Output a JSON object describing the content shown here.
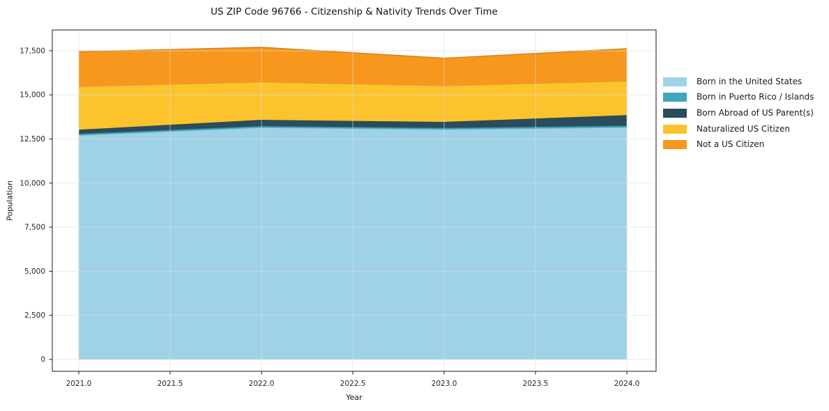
{
  "chart_data": {
    "type": "area",
    "stacked": true,
    "title": "US ZIP Code 96766 - Citizenship & Nativity Trends Over Time",
    "xlabel": "Year",
    "ylabel": "Population",
    "x": [
      2021,
      2022,
      2023,
      2024
    ],
    "series": [
      {
        "name": "Born in the United States",
        "color": "#9ed2e6",
        "values": [
          12710,
          13150,
          13045,
          13160
        ]
      },
      {
        "name": "Born in Puerto Rico / Islands",
        "color": "#3fa5c0",
        "values": [
          80,
          80,
          80,
          90
        ]
      },
      {
        "name": "Born Abroad of US Parent(s)",
        "color": "#2b4c5c",
        "values": [
          235,
          355,
          340,
          600
        ]
      },
      {
        "name": "Naturalized US Citizen",
        "color": "#fcc32d",
        "values": [
          2450,
          2145,
          2055,
          1935
        ]
      },
      {
        "name": "Not a US Citizen",
        "color": "#f8971d",
        "values": [
          1975,
          1970,
          1560,
          1835
        ]
      }
    ],
    "x_ticks": [
      {
        "v": 2021.0,
        "label": "2021.0"
      },
      {
        "v": 2021.5,
        "label": "2021.5"
      },
      {
        "v": 2022.0,
        "label": "2022.0"
      },
      {
        "v": 2022.5,
        "label": "2022.5"
      },
      {
        "v": 2023.0,
        "label": "2023.0"
      },
      {
        "v": 2023.5,
        "label": "2023.5"
      },
      {
        "v": 2024.0,
        "label": "2024.0"
      }
    ],
    "y_ticks": [
      {
        "v": 0,
        "label": "0"
      },
      {
        "v": 2500,
        "label": "2,500"
      },
      {
        "v": 5000,
        "label": "5,000"
      },
      {
        "v": 7500,
        "label": "7,500"
      },
      {
        "v": 10000,
        "label": "10,000"
      },
      {
        "v": 12500,
        "label": "12,500"
      },
      {
        "v": 15000,
        "label": "15,000"
      },
      {
        "v": 17500,
        "label": "17,500"
      }
    ],
    "xlim": [
      2020.855,
      2024.16
    ],
    "ylim": [
      -670,
      18680
    ],
    "grid": true,
    "legend_position": "right"
  }
}
